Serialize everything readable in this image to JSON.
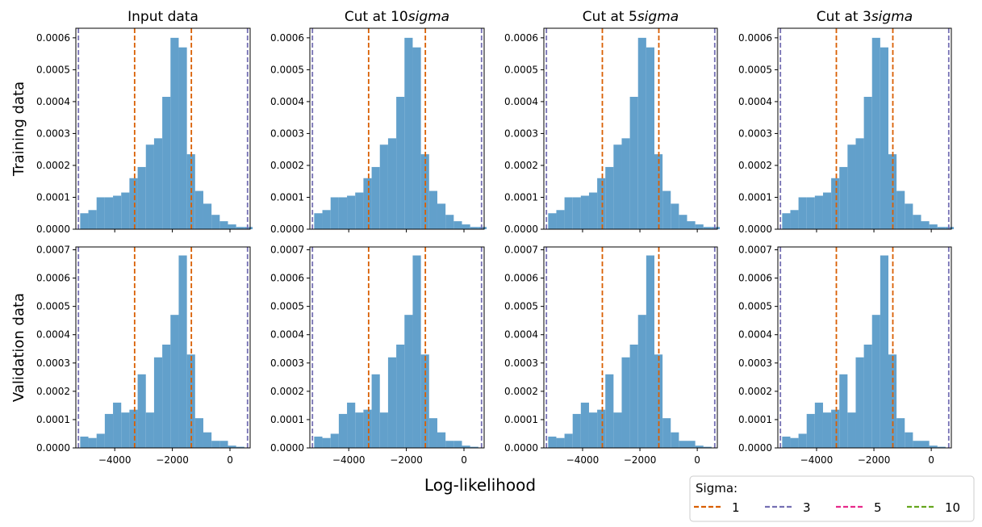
{
  "figure": {
    "xlabel": "Log-likelihood",
    "row_labels": [
      "Training data",
      "Validation data"
    ],
    "column_titles": [
      "Input data",
      "Cut at 10sigma",
      "Cut at 5sigma",
      "Cut at 3sigma"
    ],
    "legend": {
      "title": "Sigma:",
      "entries": [
        {
          "label": "1",
          "color": "#d95f02"
        },
        {
          "label": "3",
          "color": "#7570b3"
        },
        {
          "label": "5",
          "color": "#e7298a"
        },
        {
          "label": "10",
          "color": "#66a61e"
        }
      ]
    }
  },
  "chart_data": [
    {
      "type": "histogram",
      "rows": [
        {
          "name": "Training data",
          "bins_start": -5200,
          "bin_width": 285,
          "values": [
            5e-05,
            6e-05,
            0.0001,
            0.0001,
            0.000105,
            0.000115,
            0.00016,
            0.000195,
            0.000265,
            0.000285,
            0.000415,
            0.0006,
            0.00057,
            0.000235,
            0.00012,
            8e-05,
            4.5e-05,
            2.5e-05,
            1.5e-05,
            7e-06,
            7e-06
          ],
          "xlim": [
            -5350,
            700
          ],
          "ylim": [
            0,
            0.00063
          ],
          "yticks": [
            0,
            0.0001,
            0.0002,
            0.0003,
            0.0004,
            0.0005,
            0.0006
          ],
          "ytick_labels": [
            "0.0000",
            "0.0001",
            "0.0002",
            "0.0003",
            "0.0004",
            "0.0005",
            "0.0006"
          ]
        },
        {
          "name": "Validation data",
          "bins_start": -5200,
          "bin_width": 285,
          "values": [
            4e-05,
            3.5e-05,
            5e-05,
            0.00012,
            0.00016,
            0.000125,
            0.000135,
            0.00026,
            0.000125,
            0.00032,
            0.000365,
            0.00047,
            0.00068,
            0.00033,
            0.000105,
            5.5e-05,
            2.5e-05,
            2.5e-05,
            8e-06,
            4e-06
          ],
          "xlim": [
            -5350,
            700
          ],
          "ylim": [
            0,
            0.00071
          ],
          "yticks": [
            0,
            0.0001,
            0.0002,
            0.0003,
            0.0004,
            0.0005,
            0.0006,
            0.0007
          ],
          "ytick_labels": [
            "0.0000",
            "0.0001",
            "0.0002",
            "0.0003",
            "0.0004",
            "0.0005",
            "0.0006",
            "0.0007"
          ]
        }
      ],
      "bar_color": "#62a0cb",
      "xticks": [
        -4000,
        -2000,
        0
      ],
      "xtick_labels": [
        "−4000",
        "−2000",
        "0"
      ],
      "vlines": [
        {
          "sigma": "1",
          "x": -3310,
          "color": "#d95f02"
        },
        {
          "sigma": "1",
          "x": -1340,
          "color": "#d95f02"
        },
        {
          "sigma": "3",
          "x": -5260,
          "color": "#7570b3"
        },
        {
          "sigma": "3",
          "x": 610,
          "color": "#7570b3"
        }
      ]
    }
  ]
}
